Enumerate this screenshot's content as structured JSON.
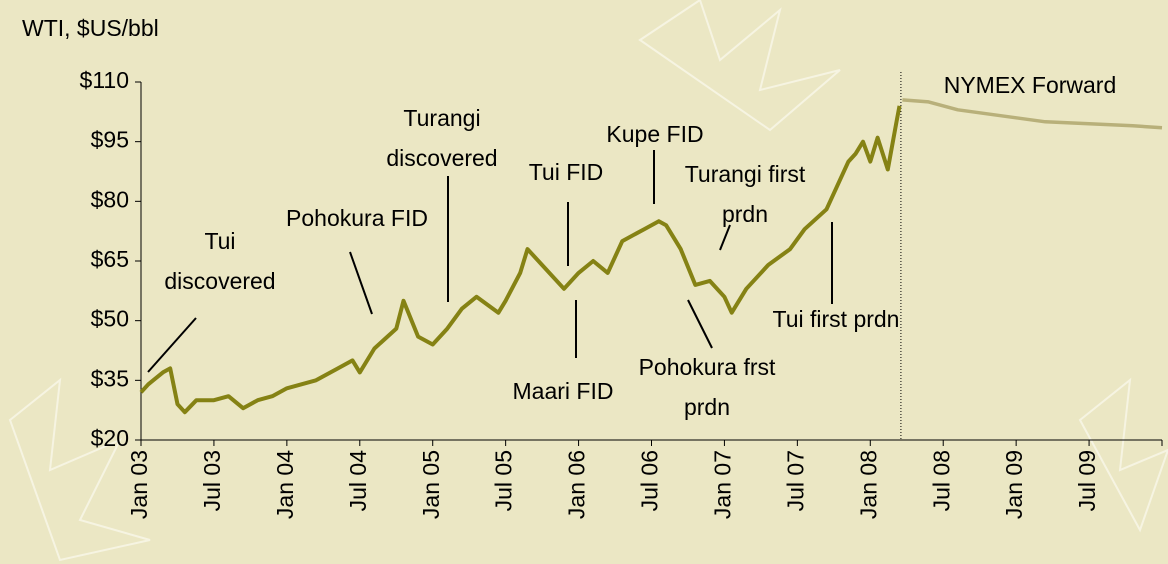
{
  "chart_data": {
    "type": "line",
    "title": "WTI, $US/bbl",
    "xlim": [
      2003,
      2010
    ],
    "xticks": [
      {
        "value": 2003,
        "label": "Jan 03"
      },
      {
        "value": 2003.5,
        "label": "Jul 03"
      },
      {
        "value": 2004,
        "label": "Jan 04"
      },
      {
        "value": 2004.5,
        "label": "Jul 04"
      },
      {
        "value": 2005,
        "label": "Jan 05"
      },
      {
        "value": 2005.5,
        "label": "Jul 05"
      },
      {
        "value": 2006,
        "label": "Jan 06"
      },
      {
        "value": 2006.5,
        "label": "Jul 06"
      },
      {
        "value": 2007,
        "label": "Jan 07"
      },
      {
        "value": 2007.5,
        "label": "Jul 07"
      },
      {
        "value": 2008,
        "label": "Jan 08"
      },
      {
        "value": 2008.5,
        "label": "Jul 08"
      },
      {
        "value": 2009,
        "label": "Jan 09"
      },
      {
        "value": 2009.5,
        "label": "Jul 09"
      }
    ],
    "ylim": [
      20,
      110
    ],
    "yticks": [
      {
        "value": 20,
        "label": "$20"
      },
      {
        "value": 35,
        "label": "$35"
      },
      {
        "value": 50,
        "label": "$50"
      },
      {
        "value": 65,
        "label": "$65"
      },
      {
        "value": 80,
        "label": "$80"
      },
      {
        "value": 95,
        "label": "$95"
      },
      {
        "value": 110,
        "label": "$110"
      }
    ],
    "series": [
      {
        "color": "#858214",
        "x": [
          2003.0,
          2003.05,
          2003.15,
          2003.2,
          2003.25,
          2003.3,
          2003.38,
          2003.5,
          2003.6,
          2003.7,
          2003.8,
          2003.9,
          2004.0,
          2004.2,
          2004.35,
          2004.45,
          2004.5,
          2004.6,
          2004.75,
          2004.8,
          2004.9,
          2005.0,
          2005.1,
          2005.2,
          2005.3,
          2005.45,
          2005.5,
          2005.6,
          2005.65,
          2005.75,
          2005.9,
          2006.0,
          2006.1,
          2006.2,
          2006.3,
          2006.45,
          2006.55,
          2006.6,
          2006.7,
          2006.8,
          2006.9,
          2007.0,
          2007.05,
          2007.15,
          2007.3,
          2007.45,
          2007.55,
          2007.7,
          2007.85,
          2007.9,
          2007.95,
          2008.0,
          2008.05,
          2008.12,
          2008.18,
          2008.2
        ],
        "values": [
          32,
          34,
          37,
          38,
          29,
          27,
          30,
          30,
          31,
          28,
          30,
          31,
          33,
          35,
          38,
          40,
          37,
          43,
          48,
          55,
          46,
          44,
          48,
          53,
          56,
          52,
          55,
          62,
          68,
          64,
          58,
          62,
          65,
          62,
          70,
          73,
          75,
          74,
          68,
          59,
          60,
          56,
          52,
          58,
          64,
          68,
          73,
          78,
          90,
          92,
          95,
          90,
          96,
          88,
          100,
          104
        ]
      },
      {
        "color": "#b8b07a",
        "axis_note_free": null,
        "x": [
          2008.22,
          2008.4,
          2008.6,
          2008.8,
          2009.0,
          2009.2,
          2009.5,
          2009.8,
          2010.0
        ],
        "values": [
          105.5,
          105,
          103,
          102,
          101,
          100,
          99.5,
          99,
          98.5
        ]
      }
    ],
    "annotations": [
      [
        "Tui",
        "discovered"
      ],
      [
        "Pohokura FID"
      ],
      [
        "Turangi",
        "discovered"
      ],
      [
        "Tui FID"
      ],
      [
        "Kupe FID"
      ],
      [
        "Turangi first",
        "prdn"
      ],
      [
        "Maari FID"
      ],
      [
        "Pohokura frst",
        "prdn"
      ],
      [
        "Tui first prdn"
      ],
      [
        "NYMEX Forward"
      ]
    ]
  }
}
